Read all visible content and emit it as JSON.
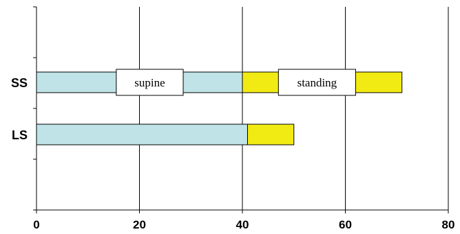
{
  "chart_data": {
    "type": "bar",
    "orientation": "horizontal",
    "stacked": true,
    "categories": [
      "SS",
      "LS"
    ],
    "series": [
      {
        "values": [
          40,
          41
        ],
        "color": "#BFE3E6"
      },
      {
        "values": [
          31,
          9
        ],
        "color": "#F2EB13"
      }
    ],
    "xlim": [
      0,
      80
    ],
    "xticks": [
      "0",
      "20",
      "40",
      "60",
      "80"
    ],
    "grid": "vertical",
    "annotations": [
      {
        "text": "supine",
        "category": "SS",
        "x_from": 15.5,
        "x_to": 28.5
      },
      {
        "text": "standing",
        "category": "SS",
        "x_from": 47,
        "x_to": 62
      }
    ],
    "xlabel": "",
    "ylabel": "",
    "title": ""
  }
}
